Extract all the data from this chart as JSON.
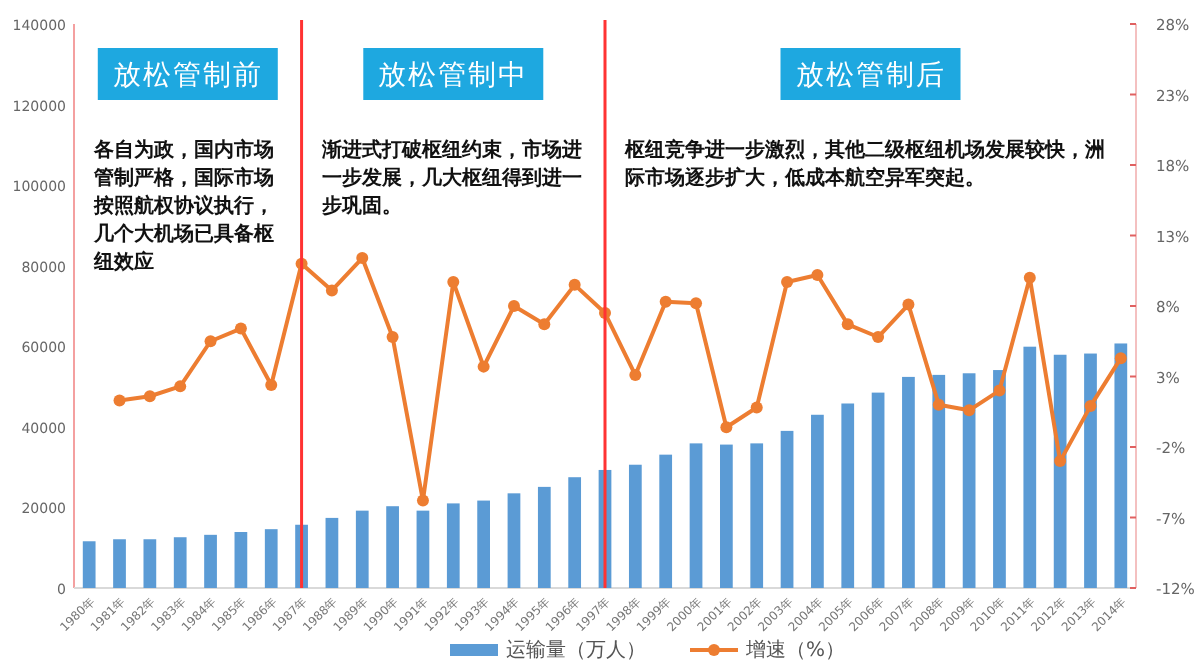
{
  "chart_data": {
    "type": "bar",
    "categories": [
      "1980年",
      "1981年",
      "1982年",
      "1983年",
      "1984年",
      "1985年",
      "1986年",
      "1987年",
      "1988年",
      "1989年",
      "1990年",
      "1991年",
      "1992年",
      "1993年",
      "1994年",
      "1995年",
      "1996年",
      "1997年",
      "1998年",
      "1999年",
      "2000年",
      "2001年",
      "2002年",
      "2003年",
      "2004年",
      "2005年",
      "2006年",
      "2007年",
      "2008年",
      "2009年",
      "2010年",
      "2011年",
      "2012年",
      "2013年",
      "2014年"
    ],
    "series": [
      {
        "name": "运输量（万人）",
        "color": "#5b9bd5",
        "values": [
          11600,
          12100,
          12100,
          12600,
          13200,
          13900,
          14600,
          15700,
          17400,
          19200,
          20300,
          19200,
          21000,
          21700,
          23500,
          25100,
          27500,
          29300,
          30600,
          33100,
          35900,
          35600,
          35900,
          39000,
          43000,
          45800,
          48500,
          52400,
          52900,
          53300,
          54100,
          59900,
          57900,
          58200,
          60700
        ]
      },
      {
        "name": "增速（%）",
        "type": "line",
        "axis": "y2",
        "color": "#ed7d31",
        "marker": "circle",
        "values": [
          null,
          1.3,
          1.6,
          2.3,
          5.5,
          6.4,
          2.4,
          11.0,
          9.1,
          11.4,
          5.8,
          -5.8,
          9.7,
          3.7,
          8.0,
          6.7,
          9.5,
          7.5,
          3.1,
          8.3,
          8.2,
          -0.6,
          0.8,
          9.7,
          10.2,
          6.7,
          5.8,
          8.1,
          1.0,
          0.6,
          2.0,
          10.0,
          -3.0,
          0.9,
          4.3
        ]
      }
    ],
    "ylim": [
      0,
      140000
    ],
    "yticks": [
      0,
      20000,
      40000,
      60000,
      80000,
      100000,
      120000,
      140000
    ],
    "y2lim": [
      -12,
      28
    ],
    "y2ticks": [
      {
        "value": -12,
        "label": "-12%"
      },
      {
        "value": -7,
        "label": "-7%"
      },
      {
        "value": -2,
        "label": "-2%"
      },
      {
        "value": 3,
        "label": "3%"
      },
      {
        "value": 8,
        "label": "8%"
      },
      {
        "value": 13,
        "label": "13%"
      },
      {
        "value": 18,
        "label": "18%"
      },
      {
        "value": 23,
        "label": "23%"
      },
      {
        "value": 28,
        "label": "28%"
      }
    ],
    "ref_lines": [
      {
        "axis": "x",
        "value": "1987年",
        "color": "#ff3333"
      },
      {
        "axis": "x",
        "value": "1997年",
        "color": "#ff3333"
      }
    ],
    "annotations": [
      "放松管制前",
      "放松管制中",
      "放松管制后",
      "各自为政，国内市场管制严格，国际市场按照航权协议执行，几个大机场已具备枢纽效应",
      "渐进式打破枢纽约束，市场进一步发展，几大枢纽得到进一步巩固。",
      "枢纽竞争进一步激烈，其他二级枢纽机场发展较快，洲际市场逐步扩大，低成本航空异军突起。"
    ],
    "legend": "bottom",
    "grid": false
  }
}
